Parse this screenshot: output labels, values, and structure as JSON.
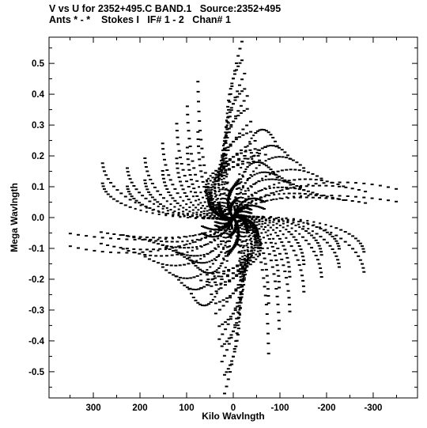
{
  "chart_data": {
    "type": "scatter",
    "title": "V vs U for 2352+495.C BAND.1   Source:2352+495",
    "subtitle": "Ants * - *    Stokes I   IF# 1 - 2   Chan# 1",
    "xlabel": "Kilo Wavlngth",
    "ylabel": "Mega Wavlngth",
    "xlim": [
      395,
      -395
    ],
    "ylim": [
      -0.585,
      0.585
    ],
    "x_ticks": [
      300,
      200,
      100,
      0,
      -100,
      -200,
      -300
    ],
    "x_tick_labels": [
      "300",
      "200",
      "100",
      "0",
      "-100",
      "-200",
      "-300"
    ],
    "y_ticks": [
      0.5,
      0.4,
      0.3,
      0.2,
      0.1,
      0.0,
      -0.1,
      -0.2,
      -0.3,
      -0.4,
      -0.5
    ],
    "y_tick_labels": [
      "0.5",
      "0.4",
      "0.3",
      "0.2",
      "0.1",
      "0.0",
      "-0.1",
      "-0.2",
      "-0.3",
      "-0.4",
      "-0.5"
    ],
    "grid": false,
    "legend": "none",
    "marker_color": "#000000",
    "tracks": {
      "description_free": true,
      "arm_angles_deg": [
        15,
        75,
        135,
        195,
        255,
        315
      ],
      "num_points_per_track": 24,
      "tracks": [
        {
          "u_max": 100,
          "v_max": 0.55
        },
        {
          "u_max": 130,
          "v_max": 0.45
        },
        {
          "u_max": 160,
          "v_max": 0.38
        },
        {
          "u_max": 200,
          "v_max": 0.3
        },
        {
          "u_max": 250,
          "v_max": 0.24
        },
        {
          "u_max": 300,
          "v_max": 0.2
        },
        {
          "u_max": 370,
          "v_max": 0.22
        },
        {
          "u_max": 70,
          "v_max": 0.12
        },
        {
          "u_max": 40,
          "v_max": 0.06
        }
      ]
    }
  }
}
